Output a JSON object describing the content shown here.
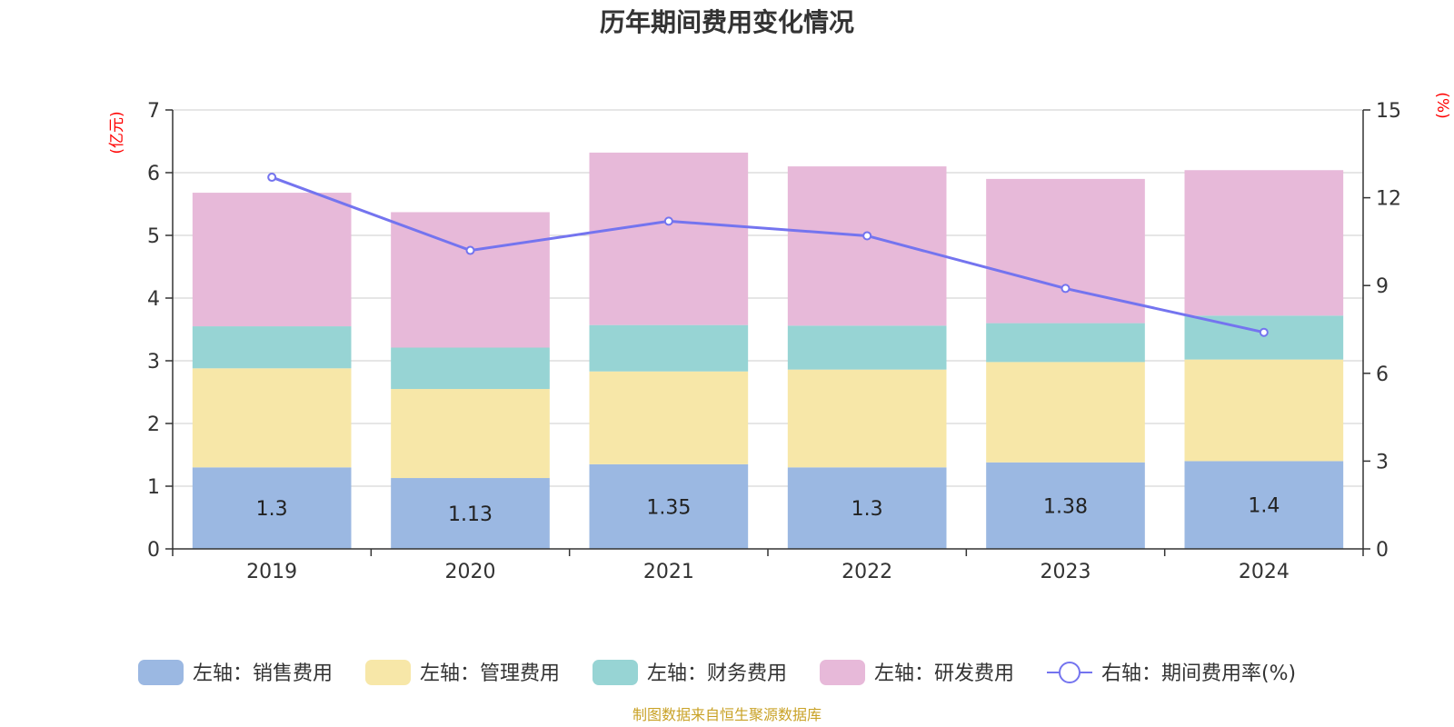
{
  "chart_data": {
    "type": "bar",
    "stacked": true,
    "title": "历年期间费用变化情况",
    "categories": [
      "2019",
      "2020",
      "2021",
      "2022",
      "2023",
      "2024"
    ],
    "left_axis": {
      "unit": "(亿元)",
      "min": 0,
      "max": 7,
      "ticks": [
        "0",
        "1",
        "2",
        "3",
        "4",
        "5",
        "6",
        "7"
      ]
    },
    "right_axis": {
      "unit": "(%)",
      "min": 0,
      "max": 15,
      "ticks": [
        "0",
        "3",
        "6",
        "9",
        "12",
        "15"
      ]
    },
    "grid": true,
    "legend_position": "bottom",
    "series": [
      {
        "name": "左轴：销售费用",
        "axis": "left",
        "color": "#9bb8e2",
        "values": [
          1.3,
          1.13,
          1.35,
          1.3,
          1.38,
          1.4
        ],
        "labels": [
          "1.3",
          "1.13",
          "1.35",
          "1.3",
          "1.38",
          "1.4"
        ]
      },
      {
        "name": "左轴：管理费用",
        "axis": "left",
        "color": "#f7e7a8",
        "values": [
          1.58,
          1.42,
          1.48,
          1.56,
          1.6,
          1.62
        ]
      },
      {
        "name": "左轴：财务费用",
        "axis": "left",
        "color": "#97d4d4",
        "values": [
          0.67,
          0.66,
          0.74,
          0.7,
          0.62,
          0.7
        ]
      },
      {
        "name": "左轴：研发费用",
        "axis": "left",
        "color": "#e7b9d9",
        "values": [
          2.13,
          2.16,
          2.75,
          2.54,
          2.3,
          2.32
        ]
      },
      {
        "name": "右轴：期间费用率(%)",
        "axis": "right",
        "type": "line",
        "color": "#7474ef",
        "values": [
          12.7,
          10.2,
          11.2,
          10.7,
          8.9,
          7.4
        ]
      }
    ],
    "source": "制图数据来自恒生聚源数据库"
  }
}
